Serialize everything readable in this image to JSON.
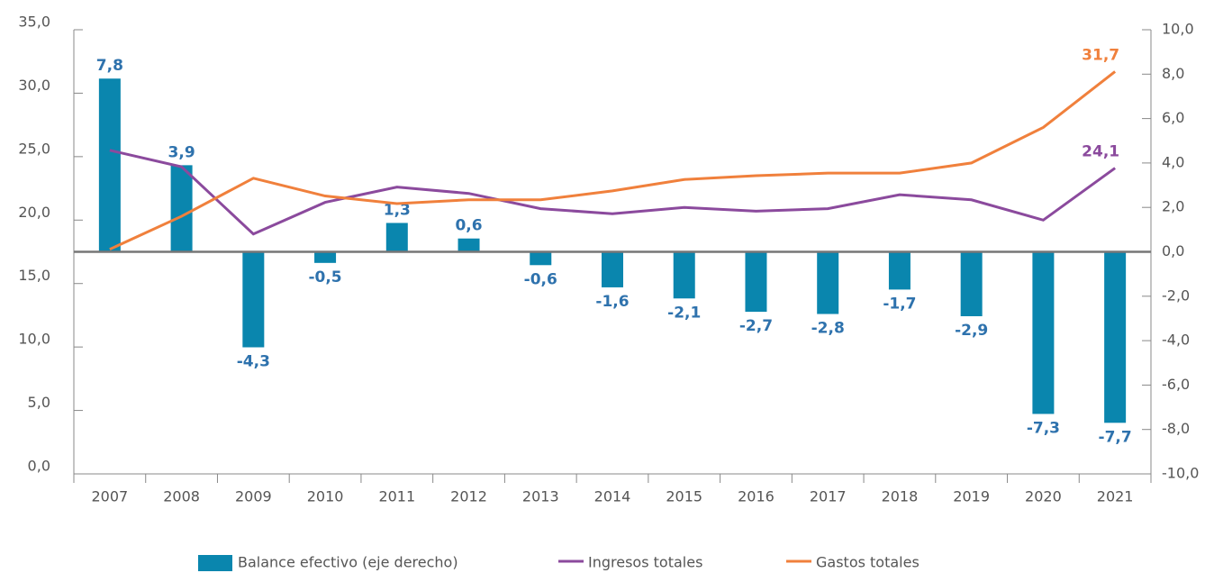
{
  "chart_data": {
    "type": "bar_line",
    "categories": [
      "2007",
      "2008",
      "2009",
      "2010",
      "2011",
      "2012",
      "2013",
      "2014",
      "2015",
      "2016",
      "2017",
      "2018",
      "2019",
      "2020",
      "2021"
    ],
    "series": [
      {
        "name": "Balance efectivo (eje derecho)",
        "type": "bar",
        "axis": "y2",
        "color": "#0a86ae",
        "values": [
          7.8,
          3.9,
          -4.3,
          -0.5,
          1.3,
          0.6,
          -0.6,
          -1.6,
          -2.1,
          -2.7,
          -2.8,
          -1.7,
          -2.9,
          -7.3,
          -7.7
        ],
        "value_labels": [
          "7,8",
          "3,9",
          "-4,3",
          "-0,5",
          "1,3",
          "0,6",
          "-0,6",
          "-1,6",
          "-2,1",
          "-2,7",
          "-2,8",
          "-1,7",
          "-2,9",
          "-7,3",
          "-7,7"
        ],
        "label_color": "#2e72ad"
      },
      {
        "name": "Ingresos totales",
        "type": "line",
        "axis": "y",
        "color": "#8b4a9d",
        "values": [
          25.5,
          24.2,
          18.9,
          21.4,
          22.6,
          22.1,
          20.9,
          20.5,
          21.0,
          20.7,
          20.9,
          22.0,
          21.6,
          20.0,
          24.1
        ],
        "value_labels": [
          null,
          null,
          null,
          null,
          null,
          null,
          null,
          null,
          null,
          null,
          null,
          null,
          null,
          null,
          "24,1"
        ]
      },
      {
        "name": "Gastos totales",
        "type": "line",
        "axis": "y",
        "color": "#f0803c",
        "values": [
          17.7,
          20.3,
          23.3,
          21.9,
          21.3,
          21.6,
          21.6,
          22.3,
          23.2,
          23.5,
          23.7,
          23.7,
          24.5,
          27.3,
          31.7
        ],
        "value_labels": [
          null,
          null,
          null,
          null,
          null,
          null,
          null,
          null,
          null,
          null,
          null,
          null,
          null,
          null,
          "31,7"
        ]
      }
    ],
    "ylim": [
      0,
      35
    ],
    "yticks": [
      {
        "value": 0,
        "label": "0,0"
      },
      {
        "value": 5,
        "label": "5,0"
      },
      {
        "value": 10,
        "label": "10,0"
      },
      {
        "value": 15,
        "label": "15,0"
      },
      {
        "value": 20,
        "label": "20,0"
      },
      {
        "value": 25,
        "label": "25,0"
      },
      {
        "value": 30,
        "label": "30,0"
      },
      {
        "value": 35,
        "label": "35,0"
      }
    ],
    "y2lim": [
      -10,
      10
    ],
    "y2ticks": [
      {
        "value": -10,
        "label": "-10,0"
      },
      {
        "value": -8,
        "label": "-8,0"
      },
      {
        "value": -6,
        "label": "-6,0"
      },
      {
        "value": -4,
        "label": "-4,0"
      },
      {
        "value": -2,
        "label": "-2,0"
      },
      {
        "value": 0,
        "label": "0,0"
      },
      {
        "value": 2,
        "label": "2,0"
      },
      {
        "value": 4,
        "label": "4,0"
      },
      {
        "value": 6,
        "label": "6,0"
      },
      {
        "value": 8,
        "label": "8,0"
      },
      {
        "value": 10,
        "label": "10,0"
      }
    ],
    "legend": "bottom"
  }
}
